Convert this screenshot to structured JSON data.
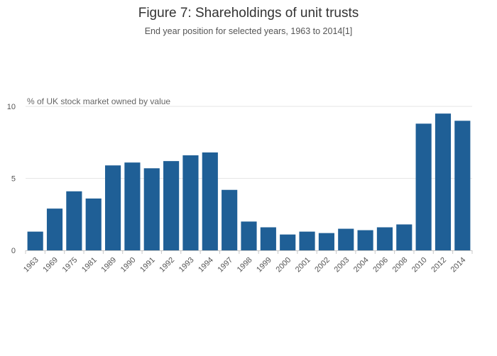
{
  "chart_data": {
    "type": "bar",
    "title": "Figure 7: Shareholdings of unit trusts",
    "subtitle": "End year position for selected years, 1963 to 2014[1]",
    "xlabel": "",
    "ylabel": "% of UK stock market owned by value",
    "ylim": [
      0,
      10
    ],
    "yticks": [
      "0",
      "5",
      "10"
    ],
    "grid": true,
    "bar_color": "#1f5f96",
    "categories": [
      "1963",
      "1969",
      "1975",
      "1981",
      "1989",
      "1990",
      "1991",
      "1992",
      "1993",
      "1994",
      "1997",
      "1998",
      "1999",
      "2000",
      "2001",
      "2002",
      "2003",
      "2004",
      "2006",
      "2008",
      "2010",
      "2012",
      "2014"
    ],
    "values": [
      1.3,
      2.9,
      4.1,
      3.6,
      5.9,
      6.1,
      5.7,
      6.2,
      6.6,
      6.8,
      4.2,
      2.0,
      1.6,
      1.1,
      1.3,
      1.2,
      1.5,
      1.4,
      1.6,
      1.8,
      8.8,
      9.5,
      9.0
    ]
  }
}
